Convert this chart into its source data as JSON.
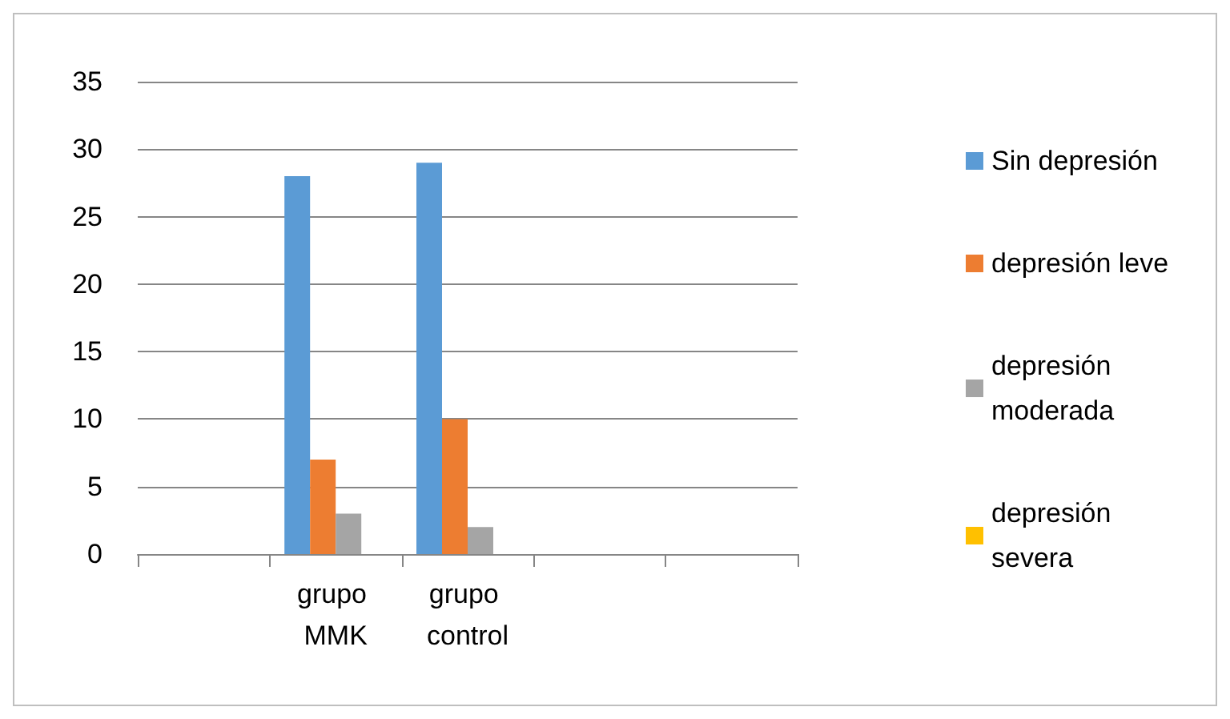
{
  "chart_data": {
    "type": "bar",
    "categories": [
      null,
      "grupo MMK",
      "grupo control",
      null,
      null
    ],
    "series": [
      {
        "name": "Sin depresión",
        "color": "#5b9bd5",
        "values": [
          null,
          28,
          29,
          null,
          null
        ]
      },
      {
        "name": "depresión leve",
        "color": "#ed7d31",
        "values": [
          null,
          7,
          10,
          null,
          null
        ]
      },
      {
        "name": "depresión moderada",
        "color": "#a5a5a5",
        "values": [
          null,
          3,
          2,
          null,
          null
        ]
      },
      {
        "name": "depresión severa",
        "color": "#ffc000",
        "values": [
          null,
          0,
          0,
          null,
          null
        ]
      }
    ],
    "ylim": [
      0,
      35
    ],
    "yticks": [
      0,
      5,
      10,
      15,
      20,
      25,
      30,
      35
    ],
    "grid": "y",
    "legend": "right"
  }
}
